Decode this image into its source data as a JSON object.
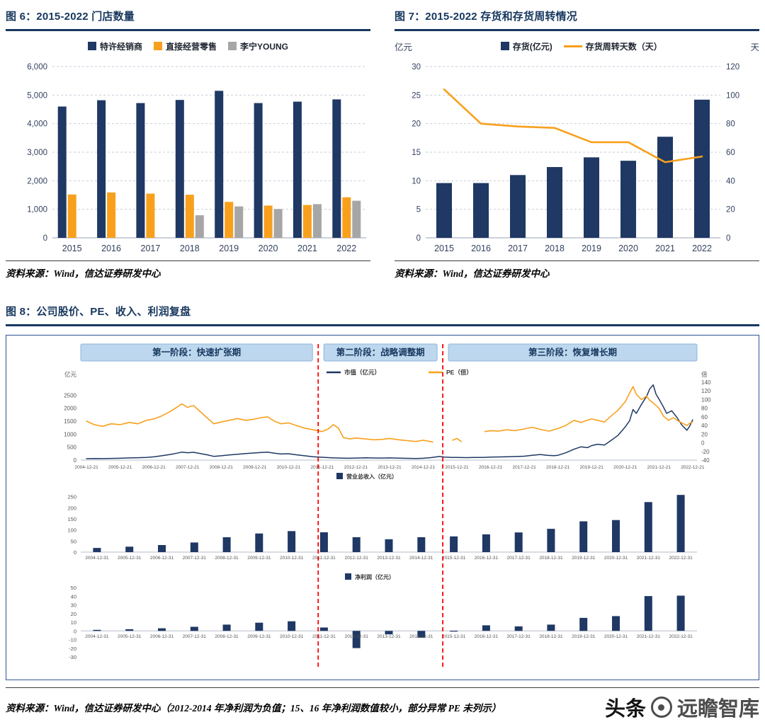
{
  "colors": {
    "navy": "#1F3864",
    "orange": "#F8A01C",
    "gray": "#A6A6A6",
    "title": "#17375E",
    "grid": "#C6CEDB",
    "axis": "#98A2B3",
    "tick": "#33415F",
    "small_tick": "#555555",
    "banner_fill": "#BDD7EE",
    "banner_border": "#8EB4DA",
    "banner_text": "#17375E",
    "red": "#FF0000",
    "box_border": "#2F5496"
  },
  "fig6": {
    "title": "图 6：2015-2022 门店数量",
    "source": "资料来源：Wind，信达证券研发中心"
  },
  "fig7": {
    "title": "图 7：2015-2022 存货和存货周转情况",
    "left_unit": "亿元",
    "right_unit": "天",
    "source": "资料来源：Wind，信达证券研发中心"
  },
  "fig8": {
    "title": "图 8：公司股价、PE、收入、利润复盘",
    "source": "资料来源：Wind，信达证券研发中心（2012-2014 年净利润为负值；15、16 年净利润数值较小，部分异常 PE 未列示）",
    "phases": [
      {
        "label": "第一阶段：快速扩张期"
      },
      {
        "label": "第二阶段：战略调整期"
      },
      {
        "label": "第三阶段：恢复增长期"
      }
    ],
    "divider_years": [
      2011.85,
      2015.55
    ]
  },
  "watermark": {
    "brand": "头条",
    "name": "远瞻智库"
  },
  "chart_data": [
    {
      "id": "fig6_stores",
      "type": "bar",
      "title": "2015-2022 门店数量",
      "categories": [
        "2015",
        "2016",
        "2017",
        "2018",
        "2019",
        "2020",
        "2021",
        "2022"
      ],
      "series": [
        {
          "name": "特许经销商",
          "color": "#1F3864",
          "values": [
            4600,
            4820,
            4720,
            4830,
            5150,
            4720,
            4770,
            4850
          ]
        },
        {
          "name": "直接经营零售",
          "color": "#F8A01C",
          "values": [
            1520,
            1590,
            1550,
            1510,
            1260,
            1130,
            1150,
            1420
          ]
        },
        {
          "name": "李宁YOUNG",
          "color": "#A6A6A6",
          "values": [
            null,
            null,
            null,
            790,
            1100,
            1010,
            1180,
            1300
          ]
        }
      ],
      "ylim": [
        0,
        6000
      ],
      "yticks": [
        0,
        1000,
        2000,
        3000,
        4000,
        5000,
        6000
      ],
      "ytick_labels": [
        "0",
        "1,000",
        "2,000",
        "3,000",
        "4,000",
        "5,000",
        "6,000"
      ]
    },
    {
      "id": "fig7_inventory",
      "type": "combo",
      "title": "2015-2022 存货和存货周转情况",
      "categories": [
        "2015",
        "2016",
        "2017",
        "2018",
        "2019",
        "2020",
        "2021",
        "2022"
      ],
      "bar": {
        "name": "存货(亿元)",
        "color": "#1F3864",
        "axis": "left",
        "values": [
          9.6,
          9.6,
          11.0,
          12.4,
          14.1,
          13.5,
          17.7,
          24.2
        ]
      },
      "line": {
        "name": "存货周转天数（天）",
        "color": "#F8A01C",
        "axis": "right",
        "values": [
          104,
          80,
          78,
          77,
          67,
          67,
          53,
          57
        ]
      },
      "left_max": 30,
      "right_max": 120,
      "left_ticks": [
        0,
        5,
        10,
        15,
        20,
        25,
        30
      ],
      "right_ticks": [
        0,
        20,
        40,
        60,
        80,
        100,
        120
      ]
    },
    {
      "id": "fig8_top",
      "type": "line",
      "left_unit": "亿元",
      "right_unit": "倍",
      "left_max": 3000,
      "left_ticks": [
        0,
        500,
        1000,
        1500,
        2000,
        2500
      ],
      "right_range": [
        -40,
        140
      ],
      "right_ticks": [
        -40,
        -20,
        0,
        20,
        40,
        60,
        80,
        100,
        120,
        140
      ],
      "x_range": [
        2004.8,
        2023.1
      ],
      "x_tick_labels": [
        "2004-12-21",
        "2005-12-21",
        "2006-12-21",
        "2007-12-21",
        "2008-12-21",
        "2009-12-21",
        "2010-12-21",
        "2011-12-21",
        "2012-12-21",
        "2013-12-21",
        "2014-12-21",
        "2015-12-21",
        "2016-12-21",
        "2017-12-21",
        "2018-12-21",
        "2019-12-21",
        "2020-12-21",
        "2021-12-21",
        "2022-12-21"
      ],
      "series": {
        "market_cap": {
          "name": "市值（亿元）",
          "color": "#1F3864",
          "axis": "left",
          "points": [
            [
              2004.97,
              55
            ],
            [
              2005.2,
              62
            ],
            [
              2005.45,
              58
            ],
            [
              2005.7,
              66
            ],
            [
              2005.97,
              72
            ],
            [
              2006.25,
              85
            ],
            [
              2006.5,
              92
            ],
            [
              2006.75,
              105
            ],
            [
              2006.97,
              125
            ],
            [
              2007.2,
              165
            ],
            [
              2007.45,
              215
            ],
            [
              2007.65,
              265
            ],
            [
              2007.8,
              305
            ],
            [
              2007.97,
              285
            ],
            [
              2008.15,
              300
            ],
            [
              2008.35,
              255
            ],
            [
              2008.55,
              205
            ],
            [
              2008.75,
              145
            ],
            [
              2008.97,
              165
            ],
            [
              2009.2,
              195
            ],
            [
              2009.45,
              225
            ],
            [
              2009.7,
              255
            ],
            [
              2009.97,
              275
            ],
            [
              2010.15,
              295
            ],
            [
              2010.35,
              305
            ],
            [
              2010.55,
              265
            ],
            [
              2010.75,
              235
            ],
            [
              2010.97,
              245
            ],
            [
              2011.2,
              205
            ],
            [
              2011.45,
              165
            ],
            [
              2011.7,
              130
            ],
            [
              2011.97,
              110
            ],
            [
              2012.25,
              90
            ],
            [
              2012.5,
              78
            ],
            [
              2012.75,
              72
            ],
            [
              2012.97,
              80
            ],
            [
              2013.25,
              88
            ],
            [
              2013.5,
              82
            ],
            [
              2013.75,
              78
            ],
            [
              2013.97,
              85
            ],
            [
              2014.25,
              75
            ],
            [
              2014.5,
              68
            ],
            [
              2014.75,
              63
            ],
            [
              2014.97,
              70
            ],
            [
              2015.2,
              95
            ],
            [
              2015.45,
              140
            ],
            [
              2015.6,
              115
            ],
            [
              2015.8,
              105
            ],
            [
              2015.97,
              100
            ],
            [
              2016.25,
              95
            ],
            [
              2016.5,
              105
            ],
            [
              2016.75,
              100
            ],
            [
              2016.97,
              115
            ],
            [
              2017.25,
              122
            ],
            [
              2017.5,
              128
            ],
            [
              2017.75,
              138
            ],
            [
              2017.97,
              150
            ],
            [
              2018.2,
              185
            ],
            [
              2018.45,
              215
            ],
            [
              2018.65,
              185
            ],
            [
              2018.85,
              170
            ],
            [
              2018.97,
              185
            ],
            [
              2019.2,
              280
            ],
            [
              2019.45,
              420
            ],
            [
              2019.65,
              510
            ],
            [
              2019.85,
              480
            ],
            [
              2019.97,
              560
            ],
            [
              2020.15,
              610
            ],
            [
              2020.35,
              580
            ],
            [
              2020.55,
              760
            ],
            [
              2020.75,
              950
            ],
            [
              2020.97,
              1280
            ],
            [
              2021.1,
              1520
            ],
            [
              2021.2,
              1950
            ],
            [
              2021.3,
              1800
            ],
            [
              2021.45,
              2150
            ],
            [
              2021.6,
              2450
            ],
            [
              2021.7,
              2750
            ],
            [
              2021.8,
              2900
            ],
            [
              2021.88,
              2550
            ],
            [
              2021.97,
              2350
            ],
            [
              2022.1,
              2050
            ],
            [
              2022.2,
              1800
            ],
            [
              2022.35,
              1900
            ],
            [
              2022.5,
              1650
            ],
            [
              2022.65,
              1350
            ],
            [
              2022.8,
              1150
            ],
            [
              2022.88,
              1300
            ],
            [
              2022.97,
              1550
            ]
          ]
        },
        "pe": {
          "name": "PE（倍）",
          "color": "#F8A01C",
          "axis": "right",
          "segments": [
            [
              [
                2004.97,
                50
              ],
              [
                2005.2,
                42
              ],
              [
                2005.45,
                38
              ],
              [
                2005.7,
                44
              ],
              [
                2005.97,
                42
              ],
              [
                2006.25,
                47
              ],
              [
                2006.5,
                44
              ],
              [
                2006.75,
                52
              ],
              [
                2006.97,
                55
              ],
              [
                2007.2,
                62
              ],
              [
                2007.45,
                72
              ],
              [
                2007.65,
                82
              ],
              [
                2007.8,
                90
              ],
              [
                2007.97,
                82
              ],
              [
                2008.15,
                86
              ],
              [
                2008.35,
                72
              ],
              [
                2008.55,
                58
              ],
              [
                2008.75,
                44
              ],
              [
                2008.97,
                48
              ],
              [
                2009.2,
                52
              ],
              [
                2009.45,
                56
              ],
              [
                2009.7,
                52
              ],
              [
                2009.97,
                55
              ],
              [
                2010.15,
                58
              ],
              [
                2010.35,
                60
              ],
              [
                2010.55,
                50
              ],
              [
                2010.75,
                44
              ],
              [
                2010.97,
                46
              ],
              [
                2011.2,
                40
              ],
              [
                2011.45,
                34
              ],
              [
                2011.7,
                30
              ],
              [
                2011.97,
                26
              ],
              [
                2012.15,
                32
              ],
              [
                2012.3,
                42
              ],
              [
                2012.45,
                34
              ],
              [
                2012.6,
                12
              ],
              [
                2012.8,
                9
              ],
              [
                2012.97,
                11
              ],
              [
                2013.25,
                9
              ],
              [
                2013.5,
                7
              ],
              [
                2013.75,
                8
              ],
              [
                2013.97,
                10
              ],
              [
                2014.25,
                7
              ],
              [
                2014.5,
                5
              ],
              [
                2014.75,
                3
              ],
              [
                2014.97,
                6
              ],
              [
                2015.1,
                4
              ],
              [
                2015.25,
                2
              ]
            ],
            [
              [
                2015.85,
                6
              ],
              [
                2015.97,
                10
              ],
              [
                2016.1,
                3
              ]
            ],
            [
              [
                2016.8,
                26
              ],
              [
                2016.97,
                28
              ],
              [
                2017.2,
                27
              ],
              [
                2017.45,
                30
              ],
              [
                2017.7,
                28
              ],
              [
                2017.97,
                32
              ],
              [
                2018.2,
                36
              ],
              [
                2018.45,
                31
              ],
              [
                2018.7,
                27
              ],
              [
                2018.97,
                33
              ],
              [
                2019.2,
                40
              ],
              [
                2019.45,
                52
              ],
              [
                2019.65,
                47
              ],
              [
                2019.97,
                55
              ],
              [
                2020.15,
                52
              ],
              [
                2020.35,
                48
              ],
              [
                2020.55,
                62
              ],
              [
                2020.75,
                75
              ],
              [
                2020.97,
                95
              ],
              [
                2021.1,
                115
              ],
              [
                2021.2,
                130
              ],
              [
                2021.3,
                112
              ],
              [
                2021.45,
                100
              ],
              [
                2021.6,
                108
              ],
              [
                2021.7,
                98
              ],
              [
                2021.8,
                92
              ],
              [
                2021.97,
                80
              ],
              [
                2022.1,
                62
              ],
              [
                2022.25,
                52
              ],
              [
                2022.4,
                58
              ],
              [
                2022.55,
                50
              ],
              [
                2022.7,
                44
              ],
              [
                2022.8,
                40
              ],
              [
                2022.88,
                45
              ],
              [
                2022.97,
                48
              ]
            ]
          ]
        }
      }
    },
    {
      "id": "fig8_revenue",
      "type": "bar",
      "name": "营业总收入（亿元）",
      "color": "#1F3864",
      "categories": [
        "2004-12-31",
        "2005-12-31",
        "2006-12-31",
        "2007-12-31",
        "2008-12-31",
        "2009-12-31",
        "2010-12-31",
        "2011-12-31",
        "2012-12-31",
        "2013-12-31",
        "2014-12-31",
        "2015-12-31",
        "2016-12-31",
        "2017-12-31",
        "2018-12-31",
        "2019-12-31",
        "2020-12-31",
        "2021-12-31",
        "2022-12-31"
      ],
      "values": [
        18.8,
        24.5,
        31.8,
        43.4,
        66.9,
        83.9,
        94.8,
        89.3,
        67.4,
        58.2,
        67.3,
        70.9,
        80.2,
        88.7,
        105.1,
        138.7,
        144.6,
        225.7,
        258.0
      ],
      "ymax": 300,
      "yticks": [
        0,
        50,
        100,
        150,
        200,
        250
      ]
    },
    {
      "id": "fig8_profit",
      "type": "bar",
      "name": "净利润（亿元）",
      "color": "#1F3864",
      "categories": [
        "2004-12-31",
        "2005-12-31",
        "2006-12-31",
        "2007-12-31",
        "2008-12-31",
        "2009-12-31",
        "2010-12-31",
        "2011-12-31",
        "2012-12-31",
        "2013-12-31",
        "2014-12-31",
        "2015-12-31",
        "2016-12-31",
        "2017-12-31",
        "2018-12-31",
        "2019-12-31",
        "2020-12-31",
        "2021-12-31",
        "2022-12-31"
      ],
      "values": [
        1.2,
        1.9,
        3.0,
        4.7,
        7.2,
        9.4,
        11.1,
        3.9,
        -19.8,
        -3.9,
        -7.8,
        0.1,
        6.4,
        5.2,
        7.2,
        15.0,
        17.0,
        40.1,
        40.6
      ],
      "range": [
        -30,
        50
      ],
      "yticks": [
        -30,
        -20,
        -10,
        0,
        10,
        20,
        30,
        40,
        50
      ]
    }
  ]
}
